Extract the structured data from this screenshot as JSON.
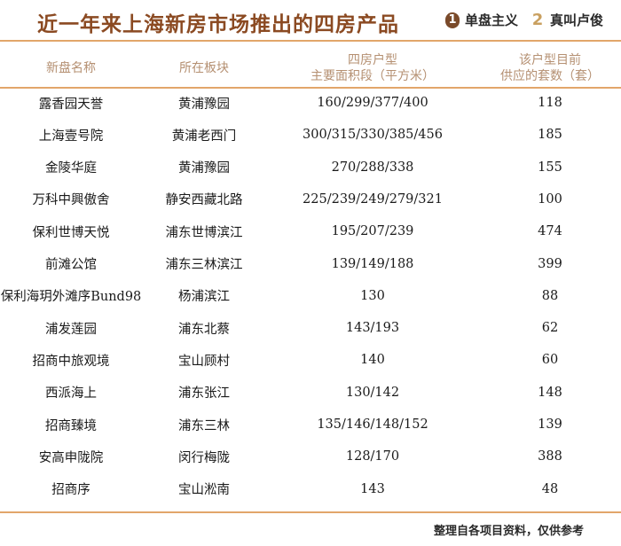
{
  "title": "近一年来上海新房市场推出的四房产品",
  "logos": [
    {
      "badge": "1",
      "text": "单盘主义",
      "color": "#7a4a2a"
    },
    {
      "badge": "2",
      "text": "真叫卢俊",
      "color": "#c9a060"
    }
  ],
  "headers": {
    "name": "新盘名称",
    "area": "所在板块",
    "size_line1": "四房户型",
    "size_line2": "主要面积段（平方米）",
    "supply_line1": "该户型目前",
    "supply_line2": "供应的套数（套）"
  },
  "rows": [
    {
      "name": "露香园天誉",
      "area": "黄浦豫园",
      "size": "160/299/377/400",
      "supply": "118"
    },
    {
      "name": "上海壹号院",
      "area": "黄浦老西门",
      "size": "300/315/330/385/456",
      "supply": "185"
    },
    {
      "name": "金陵华庭",
      "area": "黄浦豫园",
      "size": "270/288/338",
      "supply": "155"
    },
    {
      "name": "万科中興傲舍",
      "area": "静安西藏北路",
      "size": "225/239/249/279/321",
      "supply": "100"
    },
    {
      "name": "保利世博天悦",
      "area": "浦东世博滨江",
      "size": "195/207/239",
      "supply": "474"
    },
    {
      "name": "前滩公馆",
      "area": "浦东三林滨江",
      "size": "139/149/188",
      "supply": "399"
    },
    {
      "name": "保利海玥外滩序Bund98",
      "area": "杨浦滨江",
      "size": "130",
      "supply": "88"
    },
    {
      "name": "浦发莲园",
      "area": "浦东北蔡",
      "size": "143/193",
      "supply": "62"
    },
    {
      "name": "招商中旅观境",
      "area": "宝山顾村",
      "size": "140",
      "supply": "60"
    },
    {
      "name": "西派海上",
      "area": "浦东张江",
      "size": "130/142",
      "supply": "148"
    },
    {
      "name": "招商臻境",
      "area": "浦东三林",
      "size": "135/146/148/152",
      "supply": "139"
    },
    {
      "name": "安高申陇院",
      "area": "闵行梅陇",
      "size": "128/170",
      "supply": "388"
    },
    {
      "name": "招商序",
      "area": "宝山淞南",
      "size": "143",
      "supply": "48"
    }
  ],
  "footer": "整理自各项目资料，仅供参考",
  "colors": {
    "title": "#8b4a22",
    "header": "#b59072",
    "rule": "#e2a66a"
  }
}
